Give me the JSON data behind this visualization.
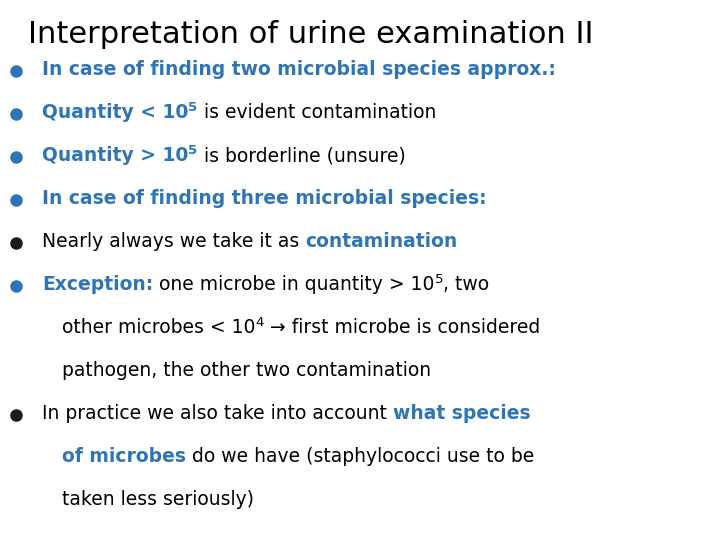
{
  "title": "Interpretation of urine examination II",
  "title_color": "#000000",
  "title_fontsize": 22,
  "background_color": "#ffffff",
  "blue_color": "#2E75B6",
  "black_color": "#000000",
  "lines": [
    {
      "bullet_color": "#2E75B6",
      "indent": 0,
      "segments": [
        {
          "text": "In case of finding two microbial species approx.:",
          "bold": true,
          "color": "#2E75B6",
          "super": false
        }
      ]
    },
    {
      "bullet_color": "#2E75B6",
      "indent": 0,
      "segments": [
        {
          "text": "Quantity < 10",
          "bold": true,
          "color": "#2E75B6",
          "super": false
        },
        {
          "text": "5",
          "bold": true,
          "color": "#2E75B6",
          "super": true
        },
        {
          "text": " is evident contamination",
          "bold": false,
          "color": "#000000",
          "super": false
        }
      ]
    },
    {
      "bullet_color": "#2E75B6",
      "indent": 0,
      "segments": [
        {
          "text": "Quantity > 10",
          "bold": true,
          "color": "#2E75B6",
          "super": false
        },
        {
          "text": "5",
          "bold": true,
          "color": "#2E75B6",
          "super": true
        },
        {
          "text": " is borderline (unsure)",
          "bold": false,
          "color": "#000000",
          "super": false
        }
      ]
    },
    {
      "bullet_color": "#2E75B6",
      "indent": 0,
      "segments": [
        {
          "text": "In case of finding three microbial species:",
          "bold": true,
          "color": "#2E75B6",
          "super": false
        }
      ]
    },
    {
      "bullet_color": "#1a1a1a",
      "indent": 0,
      "segments": [
        {
          "text": "Nearly always we take it as ",
          "bold": false,
          "color": "#000000",
          "super": false
        },
        {
          "text": "contamination",
          "bold": true,
          "color": "#2E75B6",
          "super": false
        }
      ]
    },
    {
      "bullet_color": "#2E75B6",
      "indent": 0,
      "segments": [
        {
          "text": "Exception:",
          "bold": true,
          "color": "#2E75B6",
          "super": false
        },
        {
          "text": " one microbe in quantity > 10",
          "bold": false,
          "color": "#000000",
          "super": false
        },
        {
          "text": "5",
          "bold": false,
          "color": "#000000",
          "super": true
        },
        {
          "text": ", two",
          "bold": false,
          "color": "#000000",
          "super": false
        }
      ]
    },
    {
      "bullet_color": null,
      "indent": 1,
      "segments": [
        {
          "text": "other microbes < 10",
          "bold": false,
          "color": "#000000",
          "super": false
        },
        {
          "text": "4",
          "bold": false,
          "color": "#000000",
          "super": true
        },
        {
          "text": " → first microbe is considered",
          "bold": false,
          "color": "#000000",
          "super": false
        }
      ]
    },
    {
      "bullet_color": null,
      "indent": 1,
      "segments": [
        {
          "text": "pathogen, the other two contamination",
          "bold": false,
          "color": "#000000",
          "super": false
        }
      ]
    },
    {
      "bullet_color": "#1a1a1a",
      "indent": 0,
      "segments": [
        {
          "text": "In practice we also take into account ",
          "bold": false,
          "color": "#000000",
          "super": false
        },
        {
          "text": "what species",
          "bold": true,
          "color": "#2E75B6",
          "super": false
        }
      ]
    },
    {
      "bullet_color": null,
      "indent": 1,
      "segments": [
        {
          "text": "of microbes",
          "bold": true,
          "color": "#2E75B6",
          "super": false
        },
        {
          "text": " do we have (staphylococci use to be",
          "bold": false,
          "color": "#000000",
          "super": false
        }
      ]
    },
    {
      "bullet_color": null,
      "indent": 1,
      "segments": [
        {
          "text": "taken less seriously)",
          "bold": false,
          "color": "#000000",
          "super": false
        }
      ]
    }
  ]
}
